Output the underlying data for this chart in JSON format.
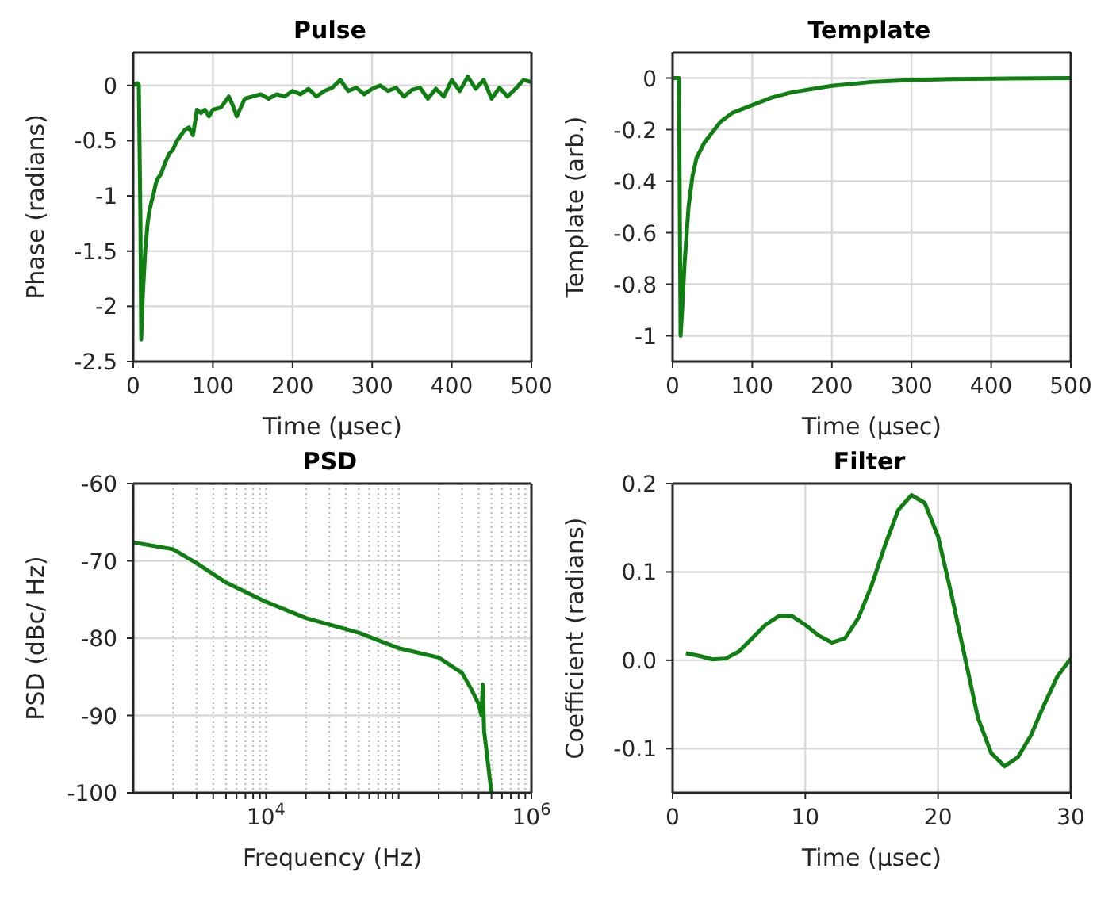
{
  "chart_data": [
    {
      "type": "line",
      "title": "Pulse",
      "xlabel": "Time (μsec)",
      "ylabel": "Phase (radians)",
      "grid": true,
      "xlim": [
        0,
        500
      ],
      "ylim": [
        -2.5,
        0.3
      ],
      "xticks": [
        0,
        100,
        200,
        300,
        400,
        500
      ],
      "yticks": [
        -2.5,
        -2,
        -1.5,
        -1,
        -0.5,
        0
      ],
      "x": [
        0,
        5,
        7,
        9,
        10,
        12,
        15,
        18,
        20,
        23,
        25,
        28,
        30,
        35,
        40,
        45,
        50,
        55,
        60,
        65,
        70,
        75,
        80,
        85,
        90,
        95,
        100,
        110,
        120,
        125,
        130,
        140,
        150,
        160,
        170,
        180,
        190,
        200,
        210,
        220,
        230,
        240,
        250,
        260,
        270,
        280,
        290,
        300,
        310,
        320,
        330,
        340,
        350,
        360,
        370,
        380,
        390,
        400,
        410,
        420,
        430,
        440,
        450,
        460,
        470,
        480,
        490,
        500
      ],
      "series": [
        {
          "color": "#0f7f12",
          "values": [
            0,
            0.02,
            0,
            -1.2,
            -2.3,
            -1.9,
            -1.5,
            -1.25,
            -1.15,
            -1.05,
            -1.0,
            -0.9,
            -0.85,
            -0.8,
            -0.7,
            -0.62,
            -0.58,
            -0.5,
            -0.45,
            -0.4,
            -0.38,
            -0.45,
            -0.22,
            -0.25,
            -0.22,
            -0.28,
            -0.22,
            -0.2,
            -0.1,
            -0.18,
            -0.28,
            -0.12,
            -0.1,
            -0.08,
            -0.12,
            -0.08,
            -0.1,
            -0.05,
            -0.08,
            -0.03,
            -0.1,
            -0.05,
            -0.02,
            0.05,
            -0.05,
            -0.02,
            -0.08,
            -0.03,
            0,
            -0.05,
            -0.02,
            -0.1,
            -0.04,
            -0.02,
            -0.12,
            -0.03,
            -0.1,
            0.05,
            -0.05,
            0.08,
            -0.03,
            0.05,
            -0.12,
            -0.02,
            -0.1,
            -0.03,
            0.05,
            0.03
          ]
        }
      ]
    },
    {
      "type": "line",
      "title": "Template",
      "xlabel": "Time (μsec)",
      "ylabel": "Template (arb.)",
      "grid": true,
      "xlim": [
        0,
        500
      ],
      "ylim": [
        -1.1,
        0.1
      ],
      "xticks": [
        0,
        100,
        200,
        300,
        400,
        500
      ],
      "yticks": [
        -1,
        -0.8,
        -0.6,
        -0.4,
        -0.2,
        0
      ],
      "x": [
        0,
        8,
        9,
        10,
        12,
        15,
        20,
        25,
        30,
        40,
        50,
        60,
        75,
        100,
        125,
        150,
        200,
        250,
        300,
        350,
        400,
        500
      ],
      "series": [
        {
          "color": "#0f7f12",
          "values": [
            0,
            0,
            -0.5,
            -1,
            -0.9,
            -0.72,
            -0.5,
            -0.38,
            -0.31,
            -0.25,
            -0.21,
            -0.17,
            -0.135,
            -0.105,
            -0.075,
            -0.055,
            -0.03,
            -0.015,
            -0.008,
            -0.004,
            -0.002,
            0
          ]
        }
      ]
    },
    {
      "type": "line",
      "title": "PSD",
      "xlabel": "Frequency (Hz)",
      "ylabel": "PSD (dBc/ Hz)",
      "grid": true,
      "log": "x",
      "xlim": [
        1000,
        1000000
      ],
      "ylim": [
        -100,
        -60
      ],
      "xticks": [
        {
          "value": 2000,
          "label": null
        },
        {
          "value": 3000,
          "label": null
        },
        {
          "value": 4000,
          "label": null
        },
        {
          "value": 5000,
          "label": null
        },
        {
          "value": 6000,
          "label": null
        },
        {
          "value": 7000,
          "label": null
        },
        {
          "value": 8000,
          "label": null
        },
        {
          "value": 9000,
          "label": null
        },
        {
          "value": 10000,
          "label": "10$^{4}$"
        },
        {
          "value": 20000,
          "label": null
        },
        {
          "value": 30000,
          "label": null
        },
        {
          "value": 40000,
          "label": null
        },
        {
          "value": 50000,
          "label": null
        },
        {
          "value": 60000,
          "label": null
        },
        {
          "value": 70000,
          "label": null
        },
        {
          "value": 80000,
          "label": null
        },
        {
          "value": 90000,
          "label": null
        },
        {
          "value": 100000,
          "label": null
        },
        {
          "value": 200000,
          "label": null
        },
        {
          "value": 300000,
          "label": null
        },
        {
          "value": 400000,
          "label": null
        },
        {
          "value": 500000,
          "label": null
        },
        {
          "value": 600000,
          "label": null
        },
        {
          "value": 700000,
          "label": null
        },
        {
          "value": 800000,
          "label": null
        },
        {
          "value": 900000,
          "label": null
        },
        {
          "value": 1000000,
          "label": "10$^{6}$"
        }
      ],
      "yticks": [
        -100,
        -90,
        -80,
        -70,
        -60
      ],
      "x": [
        1000,
        2000,
        3000,
        5000,
        10000,
        20000,
        50000,
        100000,
        200000,
        300000,
        350000,
        400000,
        420000,
        430000,
        440000,
        500000
      ],
      "series": [
        {
          "color": "#0f7f12",
          "values": [
            -67.6,
            -68.5,
            -70.3,
            -72.8,
            -75.3,
            -77.4,
            -79.3,
            -81.3,
            -82.5,
            -84.5,
            -86.5,
            -88.5,
            -90,
            -86,
            -92,
            -100
          ]
        }
      ]
    },
    {
      "type": "line",
      "title": "Filter",
      "xlabel": "Time (μsec)",
      "ylabel": "Coefficient (radians)",
      "grid": true,
      "xlim": [
        0,
        30
      ],
      "ylim": [
        -0.15,
        0.2
      ],
      "xticks": [
        0,
        10,
        20,
        30
      ],
      "yticks": [
        {
          "value": -0.1,
          "label": "-0.1"
        },
        {
          "value": 0,
          "label": "0.0"
        },
        {
          "value": 0.1,
          "label": "0.1"
        },
        {
          "value": 0.2,
          "label": "0.2"
        }
      ],
      "x": [
        1,
        2,
        3,
        4,
        5,
        6,
        7,
        8,
        9,
        10,
        11,
        12,
        13,
        14,
        15,
        16,
        17,
        18,
        19,
        20,
        21,
        22,
        23,
        24,
        25,
        26,
        27,
        28,
        29,
        30
      ],
      "series": [
        {
          "color": "#0f7f12",
          "values": [
            0.008,
            0.005,
            0.001,
            0.002,
            0.01,
            0.025,
            0.04,
            0.05,
            0.05,
            0.04,
            0.028,
            0.02,
            0.025,
            0.048,
            0.085,
            0.13,
            0.17,
            0.187,
            0.178,
            0.14,
            0.075,
            0.005,
            -0.065,
            -0.105,
            -0.12,
            -0.11,
            -0.085,
            -0.05,
            -0.018,
            0.002
          ]
        }
      ]
    }
  ]
}
